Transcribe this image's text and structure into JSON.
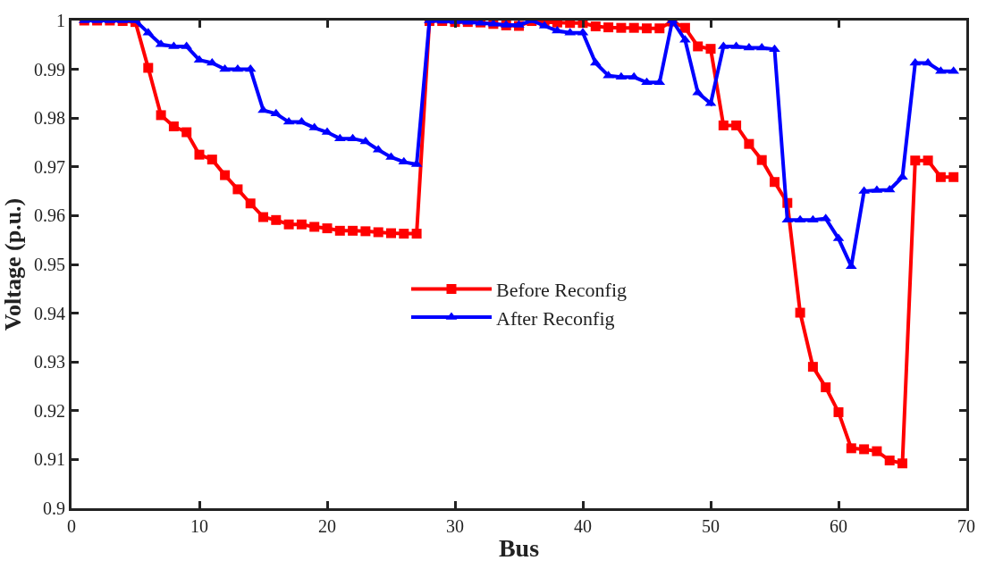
{
  "chart_data": {
    "type": "line",
    "xlabel": "Bus",
    "ylabel": "Voltage (p.u.)",
    "x": [
      1,
      2,
      3,
      4,
      5,
      6,
      7,
      8,
      9,
      10,
      11,
      12,
      13,
      14,
      15,
      16,
      17,
      18,
      19,
      20,
      21,
      22,
      23,
      24,
      25,
      26,
      27,
      28,
      29,
      30,
      31,
      32,
      33,
      34,
      35,
      36,
      37,
      38,
      39,
      40,
      41,
      42,
      43,
      44,
      45,
      46,
      47,
      48,
      49,
      50,
      51,
      52,
      53,
      54,
      55,
      56,
      57,
      58,
      59,
      60,
      61,
      62,
      63,
      64,
      65,
      66,
      67,
      68,
      69
    ],
    "series": [
      {
        "name": "Before Reconfig",
        "color": "#ff0000",
        "marker": "square",
        "values": [
          1,
          1,
          1,
          0.9999,
          0.9997,
          0.9903,
          0.9806,
          0.9783,
          0.9771,
          0.9725,
          0.9715,
          0.9683,
          0.9654,
          0.9625,
          0.9597,
          0.9591,
          0.9582,
          0.9582,
          0.9577,
          0.9574,
          0.9569,
          0.9569,
          0.9568,
          0.9566,
          0.9564,
          0.9563,
          0.9563,
          0.9999,
          0.9999,
          0.9997,
          0.9997,
          0.9996,
          0.9993,
          0.999,
          0.9989,
          0.9999,
          0.9997,
          0.9996,
          0.9995,
          0.9995,
          0.9988,
          0.9986,
          0.9985,
          0.9985,
          0.9984,
          0.9984,
          0.9998,
          0.9985,
          0.9947,
          0.9942,
          0.9785,
          0.9785,
          0.9747,
          0.9714,
          0.9669,
          0.9626,
          0.9401,
          0.929,
          0.9248,
          0.9197,
          0.9123,
          0.9121,
          0.9117,
          0.9098,
          0.9092,
          0.9713,
          0.9713,
          0.9679,
          0.9679
        ]
      },
      {
        "name": "After Reconfig",
        "color": "#0000ff",
        "marker": "triangle",
        "values": [
          1,
          1,
          1,
          1,
          1,
          0.9975,
          0.9951,
          0.9947,
          0.9947,
          0.9919,
          0.9913,
          0.99,
          0.99,
          0.99,
          0.9816,
          0.9809,
          0.9792,
          0.9792,
          0.978,
          0.9771,
          0.9758,
          0.9758,
          0.9752,
          0.9735,
          0.972,
          0.971,
          0.9705,
          1,
          0.9999,
          0.9998,
          0.9997,
          0.9995,
          0.9993,
          0.9991,
          0.9991,
          1,
          0.9989,
          0.9979,
          0.9975,
          0.9975,
          0.9913,
          0.9887,
          0.9884,
          0.9884,
          0.9873,
          0.9873,
          1,
          0.996,
          0.9852,
          0.983,
          0.9947,
          0.9947,
          0.9944,
          0.9944,
          0.9941,
          0.9591,
          0.9591,
          0.9591,
          0.9594,
          0.9553,
          0.9496,
          0.965,
          0.9652,
          0.9653,
          0.9679,
          0.9913,
          0.9913,
          0.9896,
          0.9896
        ]
      }
    ],
    "xlim": [
      0,
      70
    ],
    "xticks": [
      0,
      10,
      20,
      30,
      40,
      50,
      60,
      70
    ],
    "ylim": [
      0.9,
      1
    ],
    "yticks": [
      0.9,
      0.91,
      0.92,
      0.93,
      0.94,
      0.95,
      0.96,
      0.97,
      0.98,
      0.99,
      1
    ],
    "grid": false,
    "legend": "center",
    "line_style": "solid"
  }
}
